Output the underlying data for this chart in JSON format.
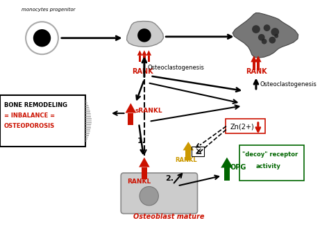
{
  "bg_color": "#ffffff",
  "monocyte_label": "monocytes progenitor",
  "osteoblast_label": "Osteoblast mature",
  "bone_box_label1": "BONE REMODELING",
  "bone_box_label2": "= INBALANCE =",
  "bone_box_label3": "OSTEOPOROSIS",
  "red": "#cc1100",
  "green": "#006600",
  "yellow": "#cc9900",
  "black": "#000000",
  "gray_cell": "#bbbbbb",
  "dark_gray": "#666666",
  "light_gray": "#dddddd"
}
